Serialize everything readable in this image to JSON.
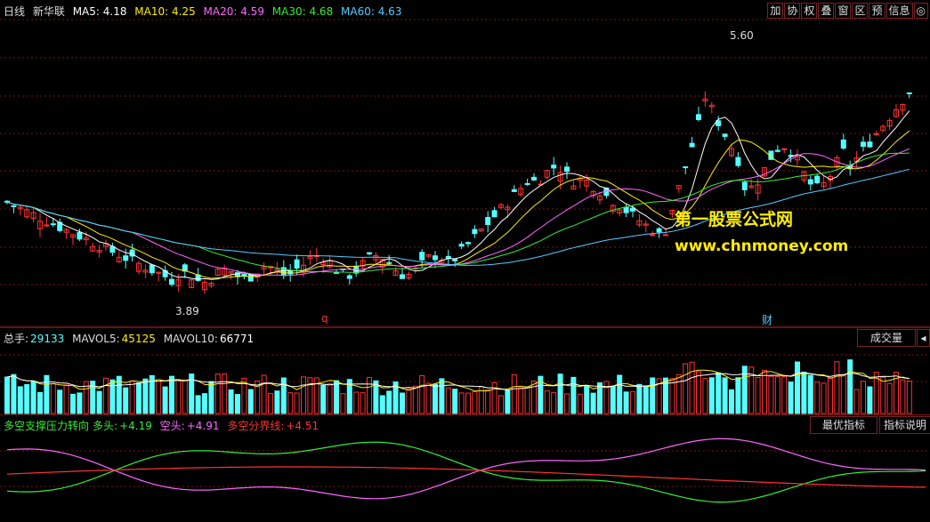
{
  "main": {
    "period": "日线",
    "stock": "新华联",
    "ma": [
      {
        "label": "MA5: 4.18",
        "color": "#ffffff"
      },
      {
        "label": "MA10: 4.25",
        "color": "#ffee00"
      },
      {
        "label": "MA20: 4.59",
        "color": "#ff66ff"
      },
      {
        "label": "MA30: 4.68",
        "color": "#33ee33"
      },
      {
        "label": "MA60: 4.63",
        "color": "#55ccff"
      }
    ],
    "high_label": "5.60",
    "low_label": "3.89",
    "event_q": "q",
    "event_cai": "财"
  },
  "toolbar": [
    "加",
    "协",
    "权",
    "叠",
    "窗",
    "区",
    "预",
    "信息",
    "◎"
  ],
  "watermark": {
    "line1": "第一股票公式网",
    "line2": "www.chnmoney.com"
  },
  "volume": {
    "label": "总手:",
    "value": "29133",
    "mavol5": "MAVOL5:",
    "mavol5_value": "45125",
    "mavol10": "MAVOL10:",
    "mavol10_value": "66771",
    "tab": "成交量",
    "tab_arrow": "◂"
  },
  "indicator": {
    "name": "多空支撑压力转向",
    "long_label": "多头:",
    "long_value": "+4.19",
    "short_label": "空头:",
    "short_value": "+4.91",
    "divide_label": "多空分界线:",
    "divide_value": "+4.51",
    "tab1": "最优指标",
    "tab2": "指标说明"
  },
  "colors": {
    "up": "#ff3333",
    "down": "#55ffff",
    "grid": "#7a1515",
    "vol_up": "#ff3333",
    "vol_down": "#55ffff"
  }
}
